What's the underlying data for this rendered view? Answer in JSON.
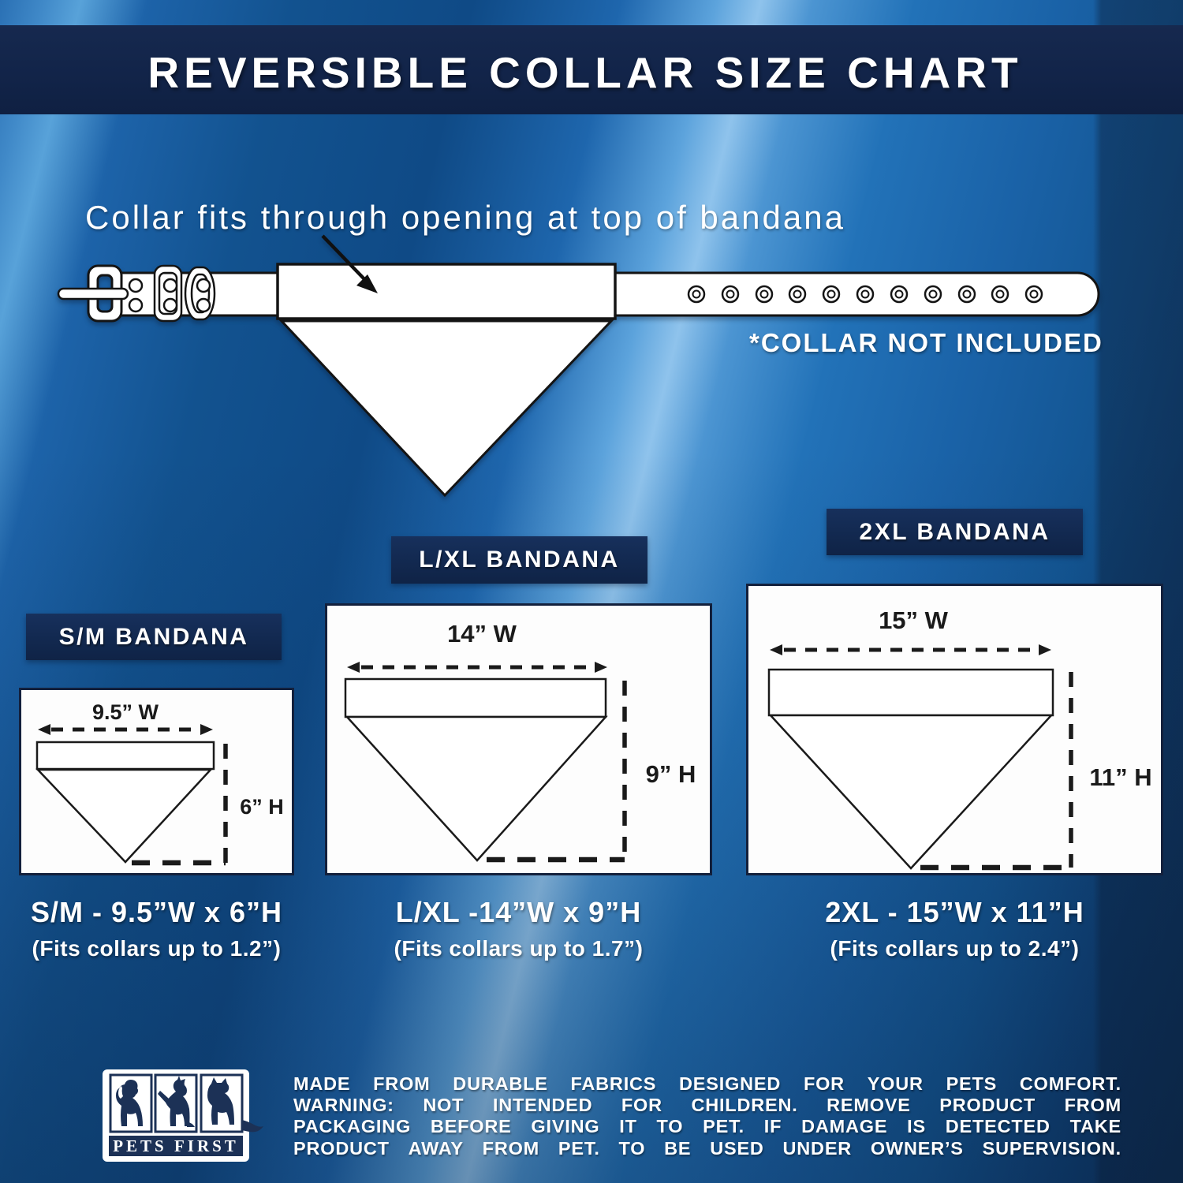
{
  "header": {
    "title": "REVERSIBLE COLLAR SIZE CHART"
  },
  "collar": {
    "caption": "Collar fits through opening at top of bandana",
    "not_included": "*COLLAR NOT INCLUDED"
  },
  "cards": [
    {
      "id": "sm",
      "label": "S/M BANDANA",
      "width_label": "9.5” W",
      "height_label": "6” H",
      "size_text": "S/M - 9.5”W x 6”H",
      "fits_text": "(Fits collars up to 1.2”)"
    },
    {
      "id": "lxl",
      "label": "L/XL BANDANA",
      "width_label": "14” W",
      "height_label": "9” H",
      "size_text": "L/XL -14”W x 9”H",
      "fits_text": "(Fits collars up to 1.7”)"
    },
    {
      "id": "2xl",
      "label": "2XL BANDANA",
      "width_label": "15” W",
      "height_label": "11” H",
      "size_text": "2XL - 15”W x 11”H",
      "fits_text": "(Fits collars up to 2.4”)"
    }
  ],
  "footer": {
    "brand": "PETS FIRST",
    "lines": [
      "MADE FROM DURABLE FABRICS DESIGNED FOR YOUR PETS COMFORT.",
      "WARNING: NOT INTENDED FOR CHILDREN. REMOVE PRODUCT FROM",
      "PACKAGING BEFORE GIVING IT TO PET. IF DAMAGE IS DETECTED TAKE",
      "PRODUCT AWAY FROM PET. TO BE USED UNDER OWNER’S SUPERVISION."
    ]
  },
  "colors": {
    "band_navy": "#122449",
    "background_blue": "#1e66ad",
    "line_dark": "#1a1a1a",
    "white": "#ffffff",
    "logo_navy": "#1c3156"
  }
}
